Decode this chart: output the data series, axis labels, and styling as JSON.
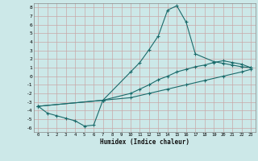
{
  "xlabel": "Humidex (Indice chaleur)",
  "bg_color": "#cce8e8",
  "grid_color": "#b8d8d8",
  "line_color": "#1a6b6b",
  "xlim": [
    -0.5,
    23.5
  ],
  "ylim": [
    -6.5,
    8.5
  ],
  "xticks": [
    0,
    1,
    2,
    3,
    4,
    5,
    6,
    7,
    8,
    9,
    10,
    11,
    12,
    13,
    14,
    15,
    16,
    17,
    18,
    19,
    20,
    21,
    22,
    23
  ],
  "yticks": [
    -6,
    -5,
    -4,
    -3,
    -2,
    -1,
    0,
    1,
    2,
    3,
    4,
    5,
    6,
    7,
    8
  ],
  "curve1_x": [
    0,
    1,
    2,
    3,
    4,
    5,
    6,
    7,
    10,
    11,
    12,
    13,
    14,
    15,
    16,
    17,
    19,
    20,
    21,
    22,
    23
  ],
  "curve1_y": [
    -3.5,
    -4.3,
    -4.6,
    -4.9,
    -5.2,
    -5.8,
    -5.7,
    -2.8,
    0.5,
    1.6,
    3.1,
    4.7,
    7.7,
    8.2,
    6.3,
    2.6,
    1.7,
    1.5,
    1.3,
    1.1,
    1.0
  ],
  "curve2_x": [
    0,
    7,
    10,
    11,
    12,
    13,
    14,
    15,
    16,
    17,
    18,
    19,
    20,
    21,
    22,
    23
  ],
  "curve2_y": [
    -3.5,
    -2.8,
    -2.0,
    -1.5,
    -1.0,
    -0.4,
    0.0,
    0.5,
    0.8,
    1.1,
    1.3,
    1.6,
    1.8,
    1.6,
    1.4,
    1.0
  ],
  "curve3_x": [
    0,
    7,
    10,
    12,
    14,
    16,
    18,
    20,
    22,
    23
  ],
  "curve3_y": [
    -3.5,
    -2.8,
    -2.5,
    -2.0,
    -1.5,
    -1.0,
    -0.5,
    0.0,
    0.5,
    0.8
  ]
}
